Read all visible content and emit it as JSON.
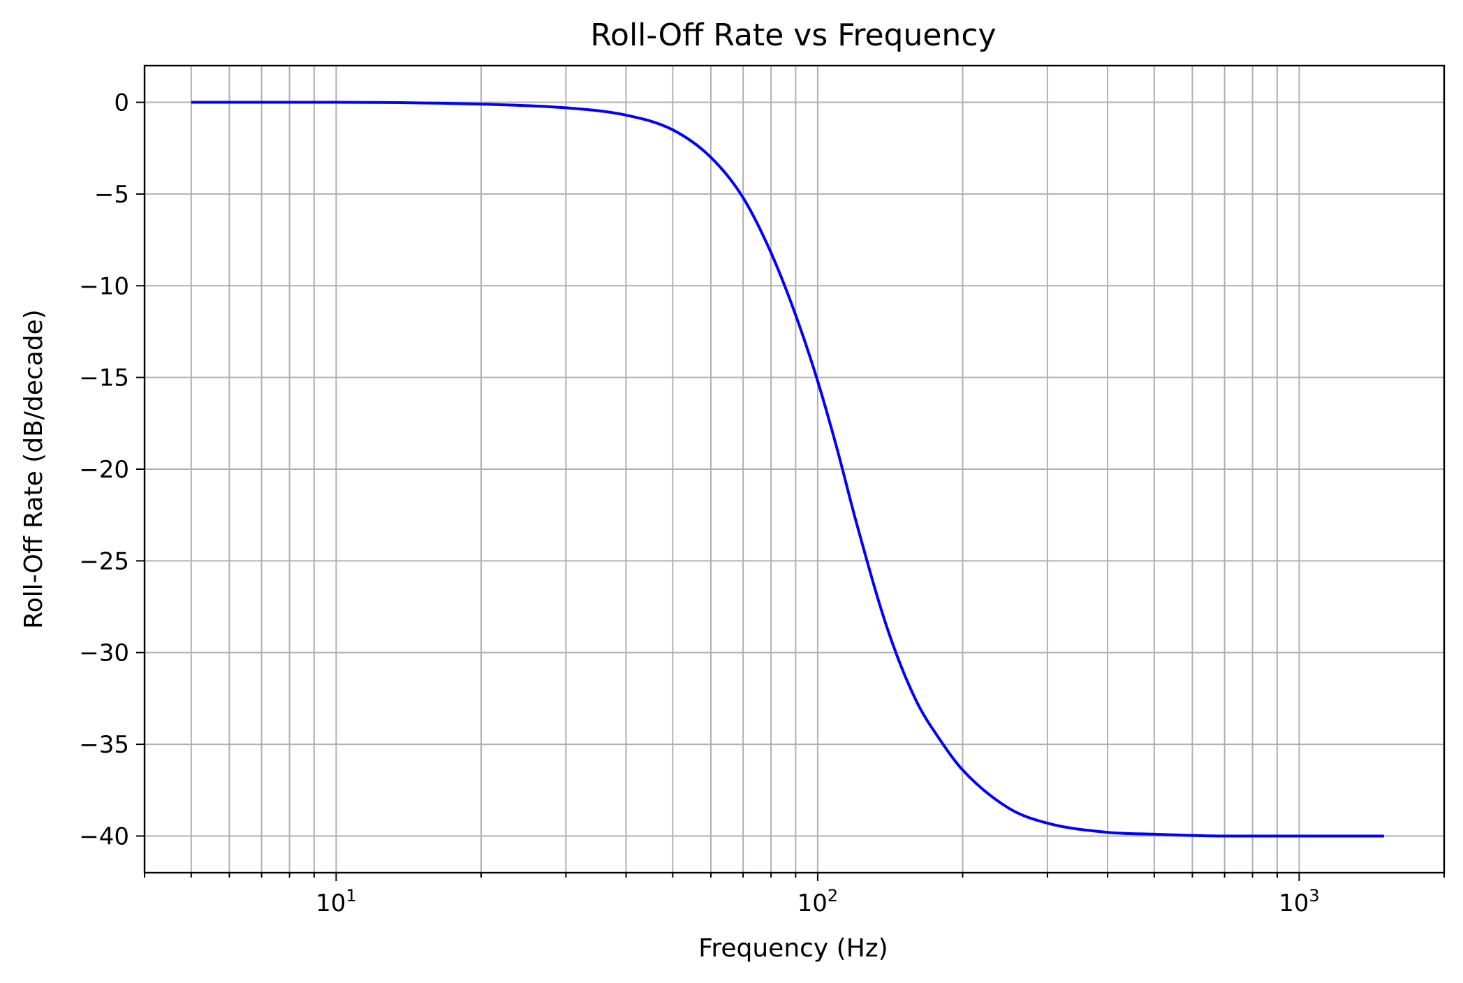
{
  "chart_data": {
    "type": "line",
    "title": "Roll-Off Rate vs Frequency",
    "xlabel": "Frequency (Hz)",
    "ylabel": "Roll-Off Rate (dB/decade)",
    "xscale": "log",
    "xlim": [
      4,
      2000
    ],
    "ylim": [
      -42,
      2
    ],
    "grid": "major and minor",
    "legend": "none",
    "x_tick_labels": [
      {
        "value": 10,
        "base": "10",
        "exp": "1"
      },
      {
        "value": 100,
        "base": "10",
        "exp": "2"
      },
      {
        "value": 1000,
        "base": "10",
        "exp": "3"
      }
    ],
    "y_ticks": [
      0,
      -5,
      -10,
      -15,
      -20,
      -25,
      -30,
      -35,
      -40
    ],
    "y_tick_labels": [
      "0",
      "−5",
      "−10",
      "−15",
      "−20",
      "−25",
      "−30",
      "−35",
      "−40"
    ],
    "series": [
      {
        "color": "#0000ff",
        "x": [
          5,
          10,
          20,
          30,
          40,
          50,
          60,
          70,
          80,
          90,
          100,
          110,
          120,
          140,
          160,
          180,
          200,
          250,
          300,
          400,
          500,
          700,
          1000,
          1500
        ],
        "y": [
          0,
          0,
          -0.1,
          -0.3,
          -0.7,
          -1.5,
          -3.0,
          -5.2,
          -8.2,
          -11.6,
          -15.2,
          -19.0,
          -22.8,
          -28.8,
          -32.6,
          -34.8,
          -36.4,
          -38.5,
          -39.3,
          -39.8,
          -39.9,
          -40.0,
          -40.0,
          -40.0
        ]
      }
    ]
  }
}
